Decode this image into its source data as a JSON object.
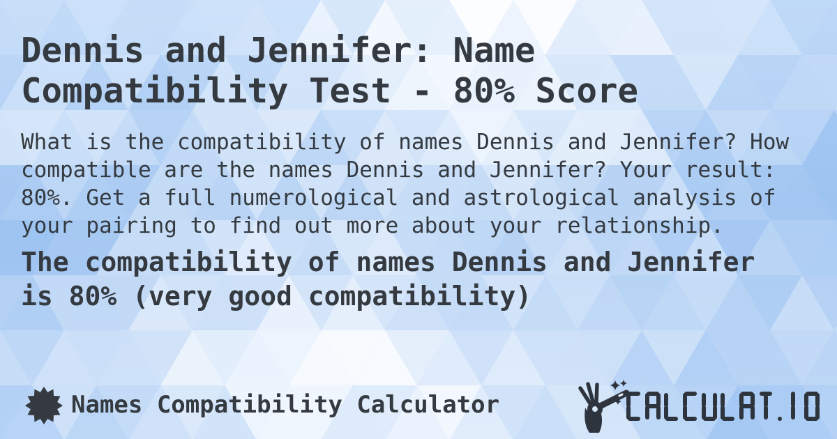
{
  "card": {
    "title": "Dennis and Jennifer: Name Compatibility Test - 80% Score",
    "description": "What is the compatibility of names Dennis and Jennifer? How compatible are the names Dennis and Jennifer? Your result: 80%. Get a full numerological and astrological analysis of your pairing to find out more about your relationship.",
    "result_summary": "The compatibility of names Dennis and Jennifer is 80% (very good compatibility)",
    "score_percent": "80%"
  },
  "footer": {
    "site_name": "Names Compatibility Calculator",
    "logo_text": "CALCULAT.IO"
  },
  "icons": {
    "left_badge": "starburst-icon",
    "logo_mark": "magic-wand-hand-icon"
  },
  "colors": {
    "text": "#343a40",
    "logo": "#2e343d",
    "background_blue_top": "#abcdf6",
    "background_blue_mid": "#9dc3f1",
    "background_blue_bottom": "#a6c9f4",
    "pattern_white": "#ffffff"
  }
}
